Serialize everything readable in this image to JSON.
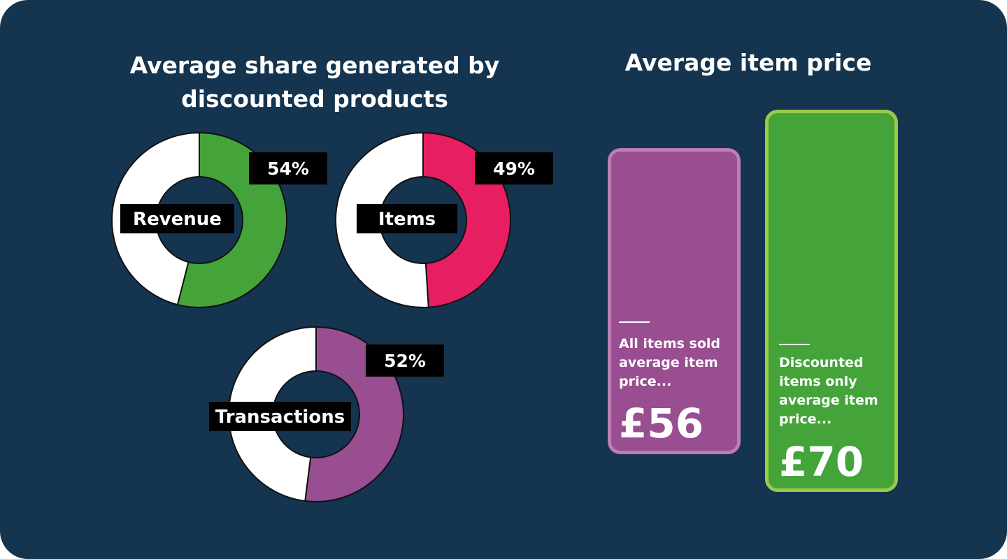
{
  "left_panel": {
    "title": "Average share generated by discounted products"
  },
  "right_panel": {
    "title": "Average item price"
  },
  "colors": {
    "background": "#14344f",
    "revenue": "#44a43a",
    "items": "#e81e63",
    "transactions": "#984e90",
    "remainder": "#ffffff",
    "all_items_card": "#984e90",
    "discounted_card": "#44a43a"
  },
  "chart_data": [
    {
      "type": "pie",
      "variant": "donut",
      "label": "Revenue",
      "value": 54,
      "value_label": "54%",
      "color": "#44a43a"
    },
    {
      "type": "pie",
      "variant": "donut",
      "label": "Items",
      "value": 49,
      "value_label": "49%",
      "color": "#e81e63"
    },
    {
      "type": "pie",
      "variant": "donut",
      "label": "Transactions",
      "value": 52,
      "value_label": "52%",
      "color": "#984e90"
    },
    {
      "type": "bar",
      "categories": [
        "All  items sold average item price...",
        "Discounted items only average item price..."
      ],
      "values": [
        56,
        70
      ],
      "value_labels": [
        "£56",
        "£70"
      ],
      "colors": [
        "#984e90",
        "#44a43a"
      ],
      "unit": "£"
    }
  ]
}
